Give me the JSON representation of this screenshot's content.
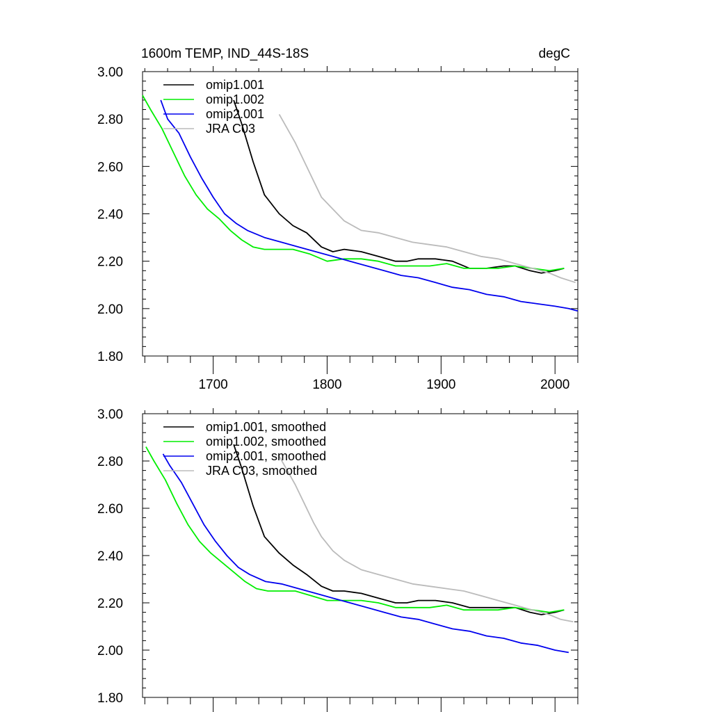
{
  "header": {
    "title": "1600m TEMP, IND_44S-18S",
    "units": "degC"
  },
  "colors": {
    "omip1_001": "#000000",
    "omip1_002": "#00ee00",
    "omip2_001": "#0000ee",
    "jra_c03": "#bbbbbb"
  },
  "chart_data": [
    {
      "type": "line",
      "xlim": [
        1638,
        2020
      ],
      "ylim": [
        1.8,
        3.0
      ],
      "x_ticks": [
        1700,
        1800,
        1900,
        2000
      ],
      "x_tick_labels": [
        "1700",
        "1800",
        "1900",
        "2000"
      ],
      "y_ticks": [
        1.8,
        2.0,
        2.2,
        2.4,
        2.6,
        2.8,
        3.0
      ],
      "y_tick_labels": [
        "1.80",
        "2.00",
        "2.20",
        "2.40",
        "2.60",
        "2.80",
        "3.00"
      ],
      "legend_position": "top-left",
      "grid": false,
      "series": [
        {
          "name": "omip1.001",
          "color": "#000000",
          "x": [
            1718,
            1725,
            1735,
            1745,
            1758,
            1770,
            1782,
            1795,
            1805,
            1815,
            1830,
            1845,
            1860,
            1870,
            1880,
            1895,
            1910,
            1925,
            1940,
            1955,
            1965,
            1978,
            1988,
            2000,
            2008
          ],
          "y": [
            2.88,
            2.78,
            2.62,
            2.48,
            2.4,
            2.35,
            2.32,
            2.26,
            2.24,
            2.25,
            2.24,
            2.22,
            2.2,
            2.2,
            2.21,
            2.21,
            2.2,
            2.17,
            2.17,
            2.18,
            2.18,
            2.16,
            2.15,
            2.16,
            2.17
          ]
        },
        {
          "name": "omip1.002",
          "color": "#00ee00",
          "x": [
            1638,
            1645,
            1655,
            1665,
            1675,
            1685,
            1695,
            1705,
            1715,
            1725,
            1735,
            1745,
            1755,
            1770,
            1785,
            1800,
            1815,
            1830,
            1845,
            1860,
            1875,
            1890,
            1905,
            1920,
            1935,
            1950,
            1965,
            1980,
            1995,
            2008
          ],
          "y": [
            2.9,
            2.84,
            2.76,
            2.66,
            2.56,
            2.48,
            2.42,
            2.38,
            2.33,
            2.29,
            2.26,
            2.25,
            2.25,
            2.25,
            2.23,
            2.2,
            2.21,
            2.21,
            2.2,
            2.18,
            2.18,
            2.18,
            2.19,
            2.17,
            2.17,
            2.17,
            2.18,
            2.17,
            2.16,
            2.17
          ]
        },
        {
          "name": "omip2.001",
          "color": "#0000ee",
          "x": [
            1654,
            1660,
            1670,
            1680,
            1690,
            1700,
            1710,
            1720,
            1730,
            1745,
            1760,
            1775,
            1790,
            1805,
            1820,
            1835,
            1850,
            1865,
            1880,
            1895,
            1910,
            1925,
            1940,
            1955,
            1970,
            1985,
            2000,
            2012,
            2020
          ],
          "y": [
            2.88,
            2.8,
            2.74,
            2.64,
            2.55,
            2.47,
            2.4,
            2.36,
            2.33,
            2.3,
            2.28,
            2.26,
            2.24,
            2.22,
            2.2,
            2.18,
            2.16,
            2.14,
            2.13,
            2.11,
            2.09,
            2.08,
            2.06,
            2.05,
            2.03,
            2.02,
            2.01,
            2.0,
            1.99
          ]
        },
        {
          "name": "JRA C03",
          "color": "#bbbbbb",
          "x": [
            1758,
            1765,
            1772,
            1780,
            1788,
            1795,
            1805,
            1815,
            1830,
            1845,
            1860,
            1875,
            1890,
            1905,
            1920,
            1935,
            1950,
            1965,
            1980,
            1995,
            2005,
            2018
          ],
          "y": [
            2.82,
            2.76,
            2.7,
            2.62,
            2.54,
            2.47,
            2.42,
            2.37,
            2.33,
            2.32,
            2.3,
            2.28,
            2.27,
            2.26,
            2.24,
            2.22,
            2.21,
            2.19,
            2.17,
            2.15,
            2.13,
            2.11
          ]
        }
      ]
    },
    {
      "type": "line",
      "xlim": [
        1638,
        2020
      ],
      "ylim": [
        1.8,
        3.0
      ],
      "x_ticks": [
        1700,
        1800,
        1900,
        2000
      ],
      "x_tick_labels": [],
      "y_ticks": [
        1.8,
        2.0,
        2.2,
        2.4,
        2.6,
        2.8,
        3.0
      ],
      "y_tick_labels": [
        "1.80",
        "2.00",
        "2.20",
        "2.40",
        "2.60",
        "2.80",
        "3.00"
      ],
      "legend_position": "top-left",
      "grid": false,
      "series": [
        {
          "name": "omip1.001, smoothed",
          "color": "#000000",
          "x": [
            1718,
            1725,
            1735,
            1745,
            1758,
            1770,
            1782,
            1795,
            1805,
            1815,
            1830,
            1845,
            1860,
            1870,
            1880,
            1895,
            1910,
            1925,
            1940,
            1955,
            1965,
            1978,
            1988,
            2000,
            2008
          ],
          "y": [
            2.87,
            2.77,
            2.61,
            2.48,
            2.41,
            2.36,
            2.32,
            2.27,
            2.25,
            2.25,
            2.24,
            2.22,
            2.2,
            2.2,
            2.21,
            2.21,
            2.2,
            2.18,
            2.18,
            2.18,
            2.18,
            2.16,
            2.15,
            2.16,
            2.17
          ]
        },
        {
          "name": "omip1.002, smoothed",
          "color": "#00ee00",
          "x": [
            1641,
            1648,
            1658,
            1668,
            1678,
            1688,
            1698,
            1708,
            1718,
            1728,
            1738,
            1748,
            1758,
            1772,
            1786,
            1800,
            1815,
            1830,
            1845,
            1860,
            1875,
            1890,
            1905,
            1920,
            1935,
            1950,
            1965,
            1980,
            1995,
            2008
          ],
          "y": [
            2.86,
            2.8,
            2.72,
            2.62,
            2.53,
            2.46,
            2.41,
            2.37,
            2.33,
            2.29,
            2.26,
            2.25,
            2.25,
            2.25,
            2.23,
            2.21,
            2.21,
            2.21,
            2.2,
            2.18,
            2.18,
            2.18,
            2.19,
            2.17,
            2.17,
            2.17,
            2.18,
            2.17,
            2.16,
            2.17
          ]
        },
        {
          "name": "omip2.001, smoothed",
          "color": "#0000ee",
          "x": [
            1656,
            1662,
            1672,
            1682,
            1692,
            1702,
            1712,
            1722,
            1732,
            1746,
            1760,
            1775,
            1790,
            1805,
            1820,
            1835,
            1850,
            1865,
            1880,
            1895,
            1910,
            1925,
            1940,
            1955,
            1970,
            1985,
            2000,
            2012
          ],
          "y": [
            2.83,
            2.78,
            2.71,
            2.62,
            2.53,
            2.46,
            2.4,
            2.35,
            2.32,
            2.29,
            2.28,
            2.26,
            2.24,
            2.22,
            2.2,
            2.18,
            2.16,
            2.14,
            2.13,
            2.11,
            2.09,
            2.08,
            2.06,
            2.05,
            2.03,
            2.02,
            2.0,
            1.99
          ]
        },
        {
          "name": "JRA C03, smoothed",
          "color": "#bbbbbb",
          "x": [
            1758,
            1765,
            1772,
            1780,
            1788,
            1795,
            1805,
            1815,
            1830,
            1845,
            1860,
            1875,
            1890,
            1905,
            1920,
            1935,
            1950,
            1965,
            1980,
            1995,
            2005,
            2016
          ],
          "y": [
            2.82,
            2.76,
            2.7,
            2.62,
            2.54,
            2.48,
            2.42,
            2.38,
            2.34,
            2.32,
            2.3,
            2.28,
            2.27,
            2.26,
            2.25,
            2.23,
            2.21,
            2.19,
            2.17,
            2.15,
            2.13,
            2.12
          ]
        }
      ]
    }
  ]
}
